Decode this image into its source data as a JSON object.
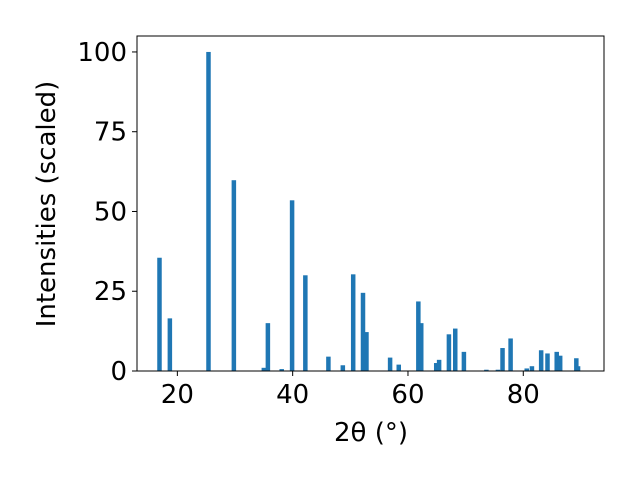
{
  "chart_data": {
    "type": "bar",
    "xlabel": "2θ (°)",
    "ylabel": "Intensities (scaled)",
    "xlim": [
      13,
      94
    ],
    "ylim": [
      0,
      105
    ],
    "xticks": [
      20,
      40,
      60,
      80
    ],
    "yticks": [
      0,
      25,
      50,
      75,
      100
    ],
    "bar_color": "#1f77b4",
    "x": [
      16.9,
      18.7,
      25.4,
      29.8,
      35.0,
      35.7,
      38.1,
      39.9,
      42.2,
      46.2,
      48.7,
      50.5,
      52.2,
      52.8,
      56.9,
      58.4,
      61.8,
      62.3,
      64.9,
      65.4,
      67.1,
      68.2,
      69.7,
      73.6,
      75.6,
      76.4,
      77.8,
      80.6,
      81.5,
      83.1,
      84.2,
      85.8,
      86.4,
      89.2,
      89.5
    ],
    "values": [
      35.5,
      16.5,
      100,
      59.8,
      1.0,
      15.0,
      0.6,
      53.5,
      30.0,
      4.5,
      1.8,
      30.3,
      24.5,
      12.2,
      4.2,
      2.0,
      21.8,
      15.0,
      2.5,
      3.5,
      11.5,
      13.3,
      6.0,
      0.4,
      0.4,
      7.2,
      10.2,
      0.8,
      1.5,
      6.5,
      5.5,
      6.0,
      4.8,
      4.0,
      1.5
    ]
  }
}
